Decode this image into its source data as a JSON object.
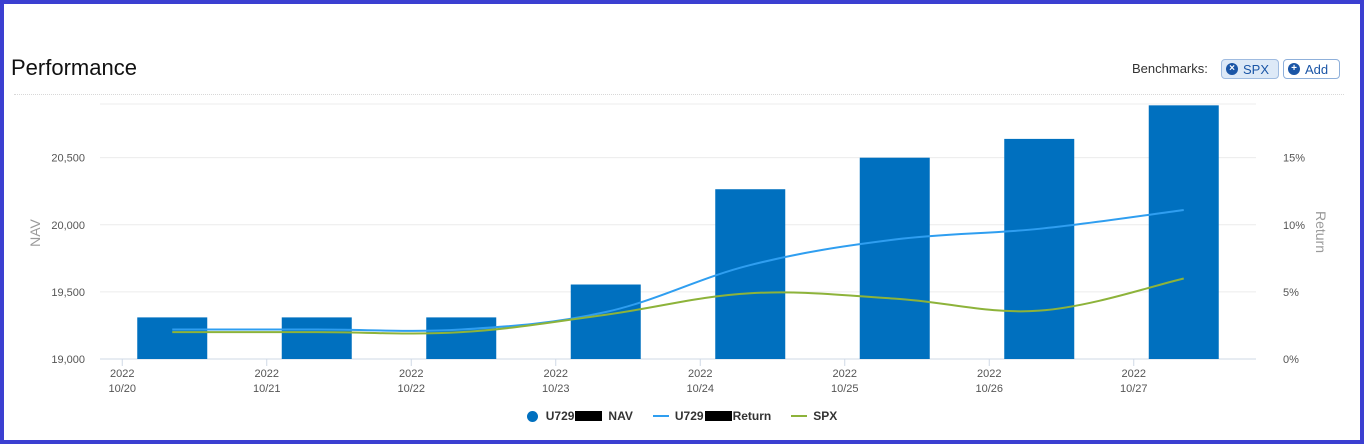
{
  "header": {
    "title": "Performance",
    "benchmarks_label": "Benchmarks:",
    "spx_button": "SPX",
    "add_button": "Add"
  },
  "colors": {
    "nav_bar": "#0070bf",
    "return_line": "#2f9ef0",
    "spx_line": "#8db33a",
    "border": "#3b3fd1"
  },
  "icons": {
    "spx_remove": "close-circle-icon",
    "add": "plus-circle-icon"
  },
  "chart_data": {
    "type": "bar",
    "categories": [
      "2022\n10/20",
      "2022\n10/21",
      "2022\n10/22",
      "2022\n10/23",
      "2022\n10/24",
      "2022\n10/25",
      "2022\n10/26",
      "2022\n10/27"
    ],
    "category_years": [
      "2022",
      "2022",
      "2022",
      "2022",
      "2022",
      "2022",
      "2022",
      "2022"
    ],
    "category_dates": [
      "10/20",
      "10/21",
      "10/22",
      "10/23",
      "10/24",
      "10/25",
      "10/26",
      "10/27"
    ],
    "series": [
      {
        "name": "U729 NAV",
        "type": "bar",
        "axis": "left",
        "values": [
          19310,
          19310,
          19310,
          19555,
          20265,
          20500,
          20640,
          20890
        ]
      },
      {
        "name": "U729 Return",
        "type": "line",
        "axis": "right",
        "values": [
          2.2,
          2.2,
          2.2,
          3.5,
          7.0,
          8.9,
          9.7,
          11.1
        ]
      },
      {
        "name": "SPX",
        "type": "line",
        "axis": "right",
        "values": [
          2.0,
          2.0,
          2.0,
          3.3,
          4.9,
          4.5,
          3.6,
          6.0
        ]
      }
    ],
    "legend_labels": {
      "nav_prefix": "U729",
      "nav_suffix": "NAV",
      "return_prefix": "U729",
      "return_suffix": "Return",
      "spx": "SPX"
    },
    "ylabel": "NAV",
    "y2label": "Return",
    "ylim": [
      19000,
      20900
    ],
    "yticks": [
      19000,
      19500,
      20000,
      20500
    ],
    "ytick_labels": [
      "19,000",
      "19,500",
      "20,000",
      "20,500"
    ],
    "y2lim": [
      0,
      19
    ],
    "y2ticks": [
      0,
      5,
      10,
      15
    ],
    "y2tick_labels": [
      "0%",
      "5%",
      "10%",
      "15%"
    ],
    "grid": true,
    "legend": "bottom-center"
  }
}
